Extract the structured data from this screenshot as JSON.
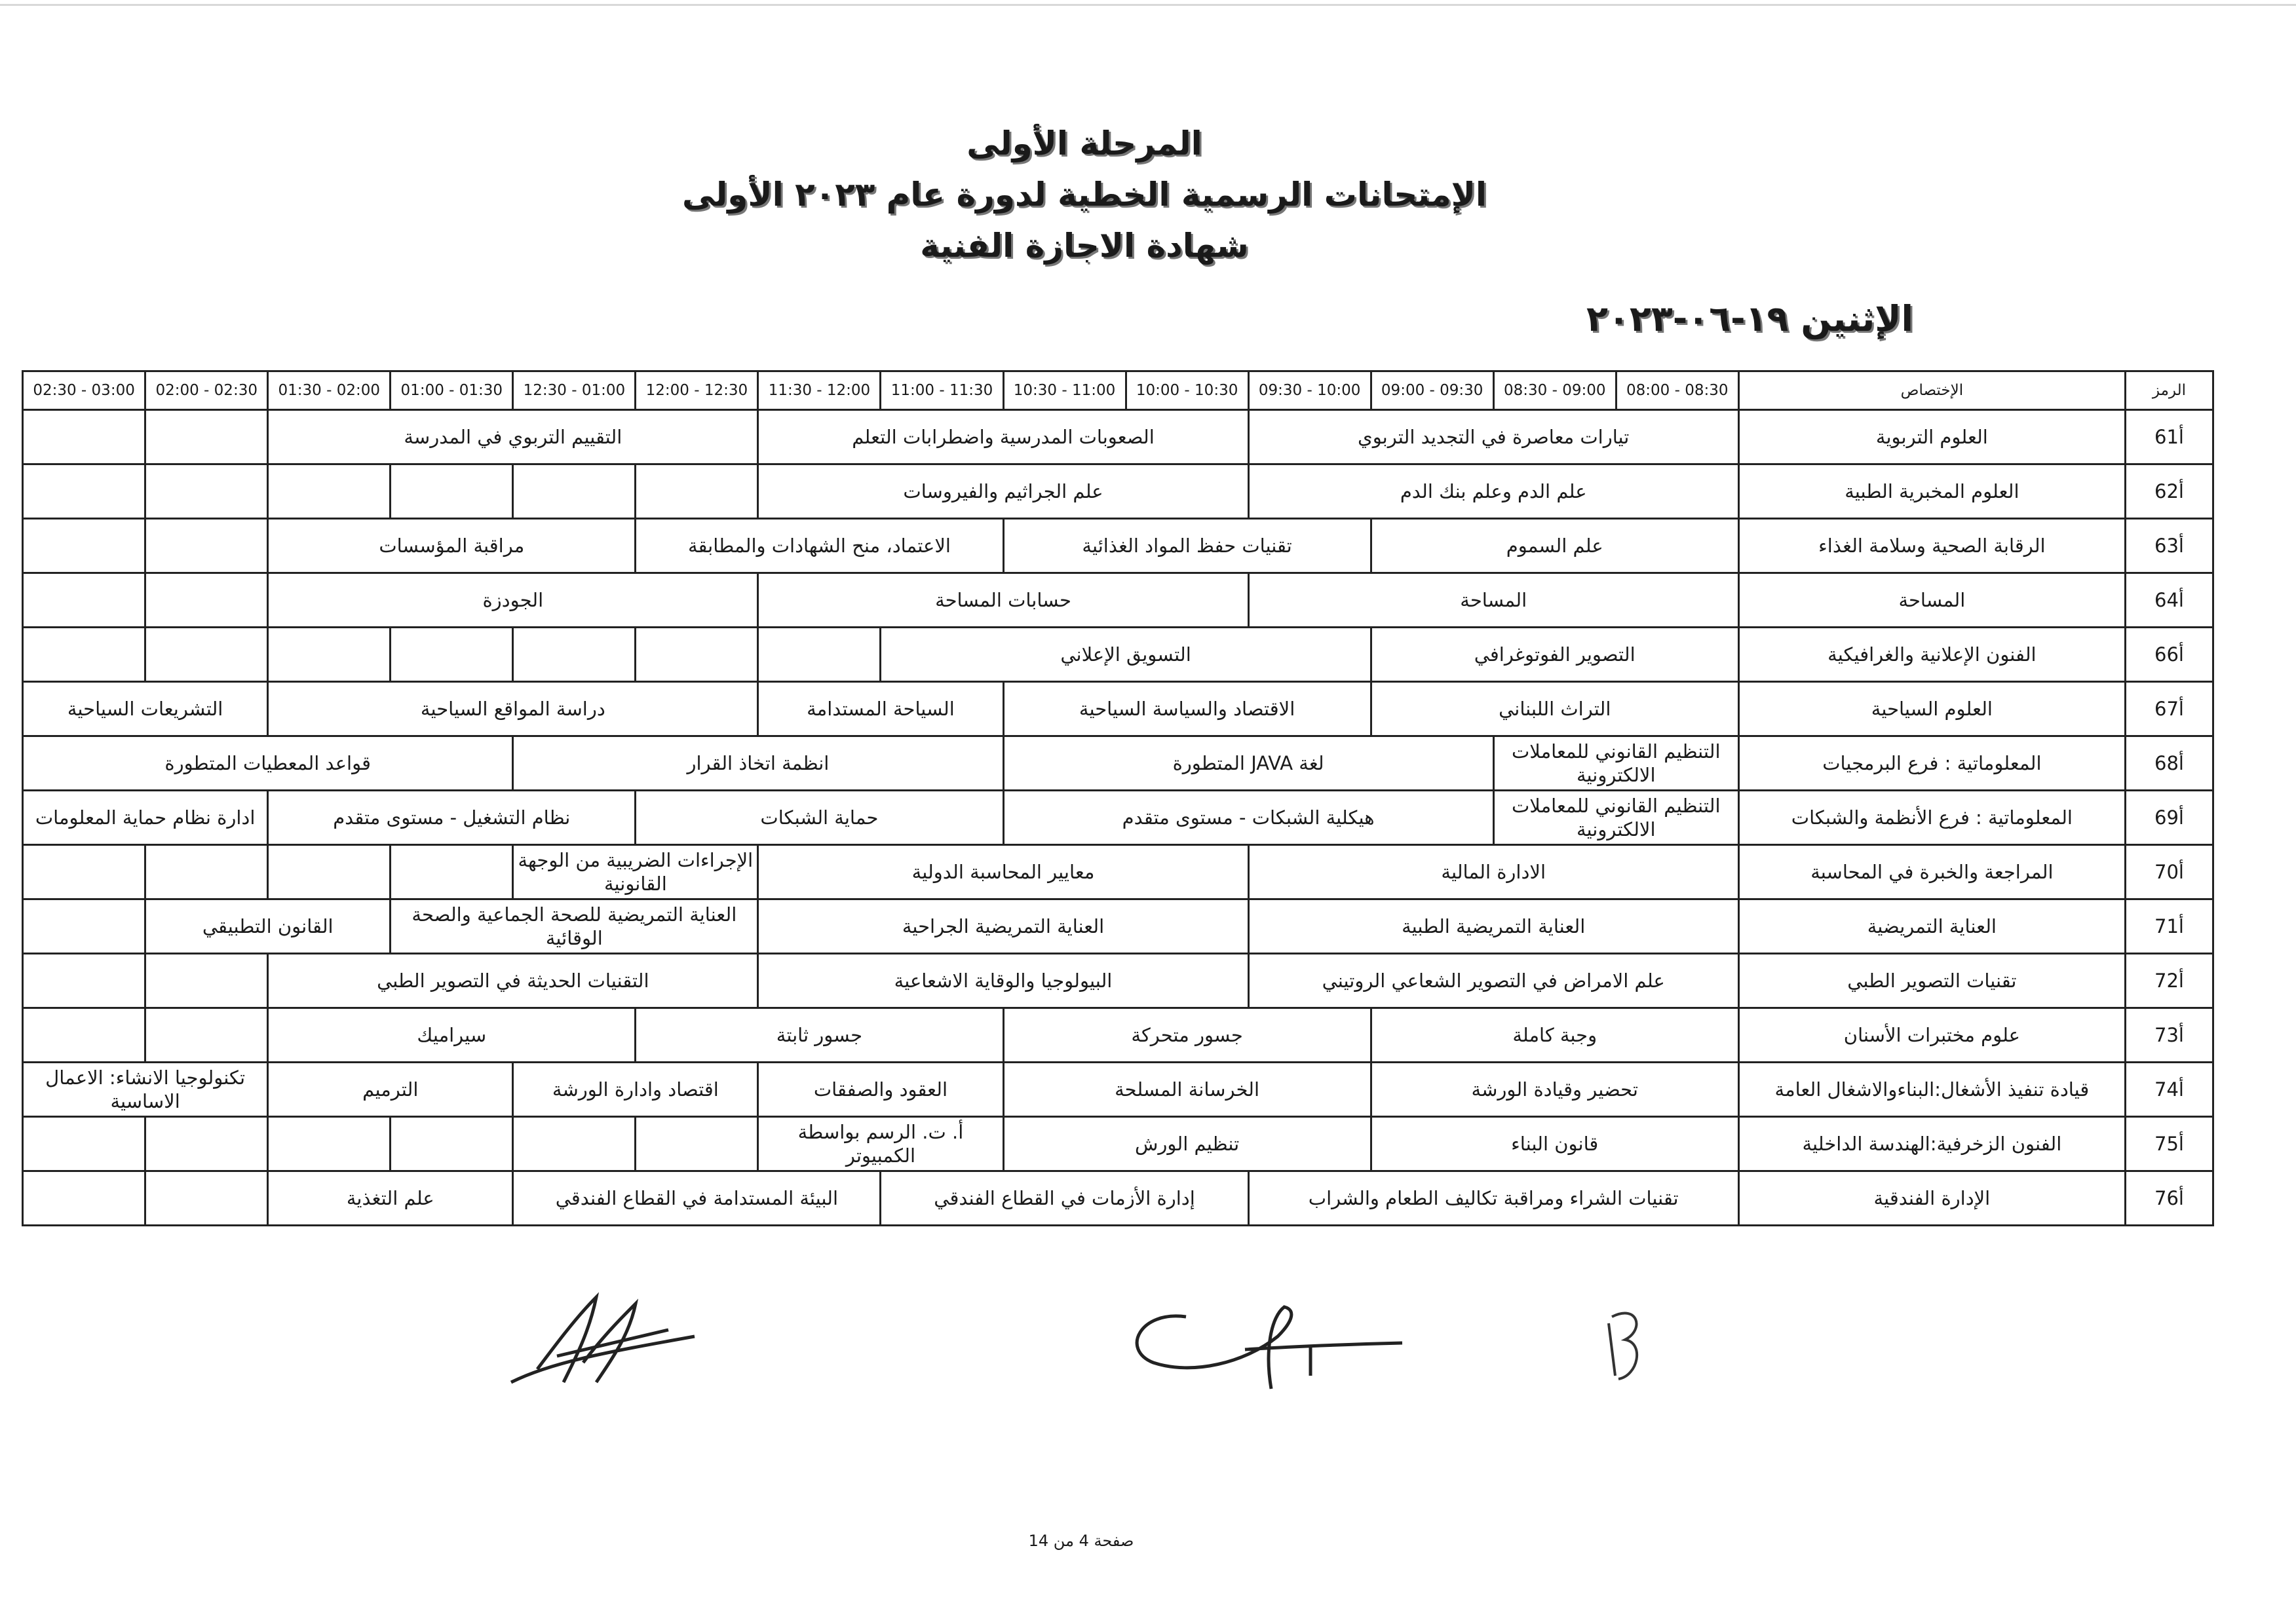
{
  "header": {
    "line1": "المرحلة الأولى",
    "line2": "الإمتحانات الرسمية الخطية لدورة عام ٢٠٢٣ الأولى",
    "line3": "شهادة الاجازة الفنية",
    "date": "الإثنين ١٩-٠٦-٢٠٢٣"
  },
  "table": {
    "code_header": "الرمز",
    "specialty_header": "الإختصاص",
    "time_slots": [
      "08:30 - 08:00",
      "09:00 - 08:30",
      "09:30 - 09:00",
      "10:00 - 09:30",
      "10:30 - 10:00",
      "11:00 - 10:30",
      "11:30 - 11:00",
      "12:00 - 11:30",
      "12:30 - 12:00",
      "01:00 - 12:30",
      "01:30 - 01:00",
      "02:00 - 01:30",
      "02:30 - 02:00",
      "03:00 - 02:30"
    ],
    "rows": [
      {
        "code": "أ61",
        "specialty": "العلوم التربوية",
        "cells": [
          {
            "text": "تيارات معاصرة في التجديد التربوي",
            "span": 4
          },
          {
            "text": "الصعوبات المدرسية واضطرابات التعلم",
            "span": 4
          },
          {
            "text": "التقييم التربوي في المدرسة",
            "span": 4
          },
          {
            "text": "",
            "span": 1
          },
          {
            "text": "",
            "span": 1
          }
        ]
      },
      {
        "code": "أ62",
        "specialty": "العلوم المخبرية الطبية",
        "cells": [
          {
            "text": "علم الدم وعلم بنك الدم",
            "span": 4
          },
          {
            "text": "علم الجراثيم والفيروسات",
            "span": 4
          },
          {
            "text": "",
            "span": 1
          },
          {
            "text": "",
            "span": 1
          },
          {
            "text": "",
            "span": 1
          },
          {
            "text": "",
            "span": 1
          },
          {
            "text": "",
            "span": 1
          },
          {
            "text": "",
            "span": 1
          }
        ]
      },
      {
        "code": "أ63",
        "specialty": "الرقابة الصحية وسلامة الغذاء",
        "cells": [
          {
            "text": "علم السموم",
            "span": 3
          },
          {
            "text": "تقنيات حفظ المواد الغذائية",
            "span": 3
          },
          {
            "text": "الاعتماد، منح الشهادات والمطابقة",
            "span": 3
          },
          {
            "text": "مراقبة المؤسسات",
            "span": 3
          },
          {
            "text": "",
            "span": 1
          },
          {
            "text": "",
            "span": 1
          }
        ]
      },
      {
        "code": "أ64",
        "specialty": "المساحة",
        "cells": [
          {
            "text": "المساحة",
            "span": 4
          },
          {
            "text": "حسابات المساحة",
            "span": 4
          },
          {
            "text": "الجودزة",
            "span": 4
          },
          {
            "text": "",
            "span": 1
          },
          {
            "text": "",
            "span": 1
          }
        ]
      },
      {
        "code": "أ66",
        "specialty": "الفنون الإعلانية والغرافيكية",
        "cells": [
          {
            "text": "التصوير الفوتوغرافي",
            "span": 3
          },
          {
            "text": "التسويق الإعلاني",
            "span": 4
          },
          {
            "text": "",
            "span": 1
          },
          {
            "text": "",
            "span": 1
          },
          {
            "text": "",
            "span": 1
          },
          {
            "text": "",
            "span": 1
          },
          {
            "text": "",
            "span": 1
          },
          {
            "text": "",
            "span": 1
          },
          {
            "text": "",
            "span": 1
          }
        ]
      },
      {
        "code": "أ67",
        "specialty": "العلوم السياحية",
        "cells": [
          {
            "text": "التراث اللبناني",
            "span": 3
          },
          {
            "text": "الاقتصاد والسياسة السياحية",
            "span": 3
          },
          {
            "text": "السياحة المستدامة",
            "span": 2
          },
          {
            "text": "دراسة المواقع السياحية",
            "span": 4
          },
          {
            "text": "التشريعات السياحية",
            "span": 2
          }
        ]
      },
      {
        "code": "أ68",
        "specialty": "المعلوماتية : فرع البرمجيات",
        "cells": [
          {
            "text": "التنظيم القانوني للمعاملات الالكترونية",
            "span": 2
          },
          {
            "text": "لغة JAVA المتطورة",
            "span": 4
          },
          {
            "text": "انظمة اتخاذ القرار",
            "span": 4
          },
          {
            "text": "قواعد المعطيات المتطورة",
            "span": 4
          }
        ]
      },
      {
        "code": "أ69",
        "specialty": "المعلوماتية : فرع الأنظمة والشبكات",
        "cells": [
          {
            "text": "التنظيم القانوني للمعاملات الالكترونية",
            "span": 2
          },
          {
            "text": "هيكلية الشبكات - مستوى متقدم",
            "span": 4
          },
          {
            "text": "حماية الشبكات",
            "span": 3
          },
          {
            "text": "نظام التشغيل - مستوى متقدم",
            "span": 3
          },
          {
            "text": "ادارة نظام حماية المعلومات",
            "span": 2
          }
        ]
      },
      {
        "code": "أ70",
        "specialty": "المراجعة والخبرة في المحاسبة",
        "cells": [
          {
            "text": "الادارة المالية",
            "span": 4
          },
          {
            "text": "معايير المحاسبة الدولية",
            "span": 4
          },
          {
            "text": "الإجراءات الضريبية من الوجهة القانونية",
            "span": 2
          },
          {
            "text": "",
            "span": 1
          },
          {
            "text": "",
            "span": 1
          },
          {
            "text": "",
            "span": 1
          },
          {
            "text": "",
            "span": 1
          }
        ]
      },
      {
        "code": "أ71",
        "specialty": "العناية التمريضية",
        "cells": [
          {
            "text": "العناية التمريضية الطبية",
            "span": 4
          },
          {
            "text": "العناية التمريضية الجراحية",
            "span": 4
          },
          {
            "text": "العناية التمريضية للصحة الجماعية والصحة الوقائية",
            "span": 3
          },
          {
            "text": "القانون التطبيقي",
            "span": 2
          },
          {
            "text": "",
            "span": 1
          }
        ]
      },
      {
        "code": "أ72",
        "specialty": "تقنيات التصوير الطبي",
        "cells": [
          {
            "text": "علم الامراض في التصوير الشعاعي الروتيني",
            "span": 4
          },
          {
            "text": "البيولوجيا والوقاية الاشعاعية",
            "span": 4
          },
          {
            "text": "التقنيات الحديثة في التصوير الطبي",
            "span": 4
          },
          {
            "text": "",
            "span": 1
          },
          {
            "text": "",
            "span": 1
          }
        ]
      },
      {
        "code": "أ73",
        "specialty": "علوم مختبرات الأسنان",
        "cells": [
          {
            "text": "وجبة كاملة",
            "span": 3
          },
          {
            "text": "جسور متحركة",
            "span": 3
          },
          {
            "text": "جسور ثابتة",
            "span": 3
          },
          {
            "text": "سيراميك",
            "span": 3
          },
          {
            "text": "",
            "span": 1
          },
          {
            "text": "",
            "span": 1
          }
        ]
      },
      {
        "code": "أ74",
        "specialty": "قيادة تنفيذ الأشغال:البناءوالاشغال العامة",
        "cells": [
          {
            "text": "تحضير وقيادة الورشة",
            "span": 3
          },
          {
            "text": "الخرسانة المسلحة",
            "span": 3
          },
          {
            "text": "العقود والصفقات",
            "span": 2
          },
          {
            "text": "اقتصاد وادارة الورشة",
            "span": 2
          },
          {
            "text": "الترميم",
            "span": 2
          },
          {
            "text": "تكنولوجيا الانشاء: الاعمال الاساسية",
            "span": 2
          }
        ]
      },
      {
        "code": "أ75",
        "specialty": "الفنون الزخرفية:الهندسة الداخلية",
        "cells": [
          {
            "text": "قانون البناء",
            "span": 3
          },
          {
            "text": "تنظيم الورش",
            "span": 3
          },
          {
            "text": "أ. ت. الرسم بواسطة الكمبيوتر",
            "span": 2
          },
          {
            "text": "",
            "span": 1
          },
          {
            "text": "",
            "span": 1
          },
          {
            "text": "",
            "span": 1
          },
          {
            "text": "",
            "span": 1
          },
          {
            "text": "",
            "span": 1
          },
          {
            "text": "",
            "span": 1
          }
        ]
      },
      {
        "code": "أ76",
        "specialty": "الإدارة الفندقية",
        "cells": [
          {
            "text": "تقنيات الشراء ومراقبة تكاليف الطعام والشراب",
            "span": 4
          },
          {
            "text": "إدارة الأزمات في القطاع الفندقي",
            "span": 3
          },
          {
            "text": "البيئة المستدامة في القطاع الفندقي",
            "span": 3
          },
          {
            "text": "علم التغذية",
            "span": 2
          },
          {
            "text": "",
            "span": 1
          },
          {
            "text": "",
            "span": 1
          }
        ]
      }
    ]
  },
  "footer": {
    "page": "صفحة 4 من 14"
  },
  "signatures": [
    "signature-1",
    "signature-2",
    "initials-3"
  ]
}
